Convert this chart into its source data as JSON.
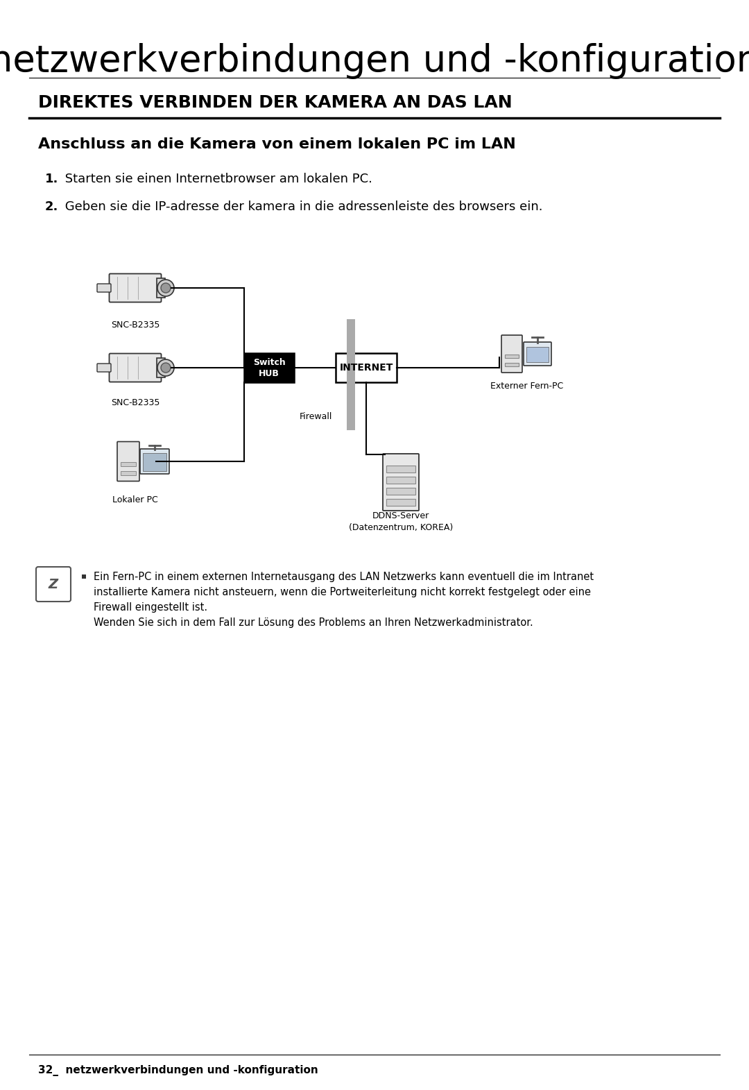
{
  "bg_color": "#ffffff",
  "page_width": 10.8,
  "page_height": 15.71,
  "header_title": "netzwerkverbindungen und -konfiguration",
  "section_title": "DIREKTES VERBINDEN DER KAMERA AN DAS LAN",
  "subsection_title": "Anschluss an die Kamera von einem lokalen PC im LAN",
  "step1_bold": "1.",
  "step1_text": " Starten sie einen Internetbrowser am lokalen PC.",
  "step2_bold": "2.",
  "step2_text": " Geben sie die IP-adresse der kamera in die adressenleiste des browsers ein.",
  "note_text_line1": "Ein Fern-PC in einem externen Internetausgang des LAN Netzwerks kann eventuell die im Intranet",
  "note_text_line2": "installierte Kamera nicht ansteuern, wenn die Portweiterleitung nicht korrekt festgelegt oder eine",
  "note_text_line3": "Firewall eingestellt ist.",
  "note_text_line4": "Wenden Sie sich in dem Fall zur Lösung des Problems an Ihren Netzwerkadministrator.",
  "footer_text": "32_  netzwerkverbindungen und -konfiguration",
  "label_snc1": "SNC-B2335",
  "label_snc2": "SNC-B2335",
  "label_switch": "Switch\nHUB",
  "label_internet": "INTERNET",
  "label_firewall": "Firewall",
  "label_extpc": "Externer Fern-PC",
  "label_lokalpc": "Lokaler PC",
  "label_ddns": "DDNS-Server\n(Datenzentrum, KOREA)"
}
